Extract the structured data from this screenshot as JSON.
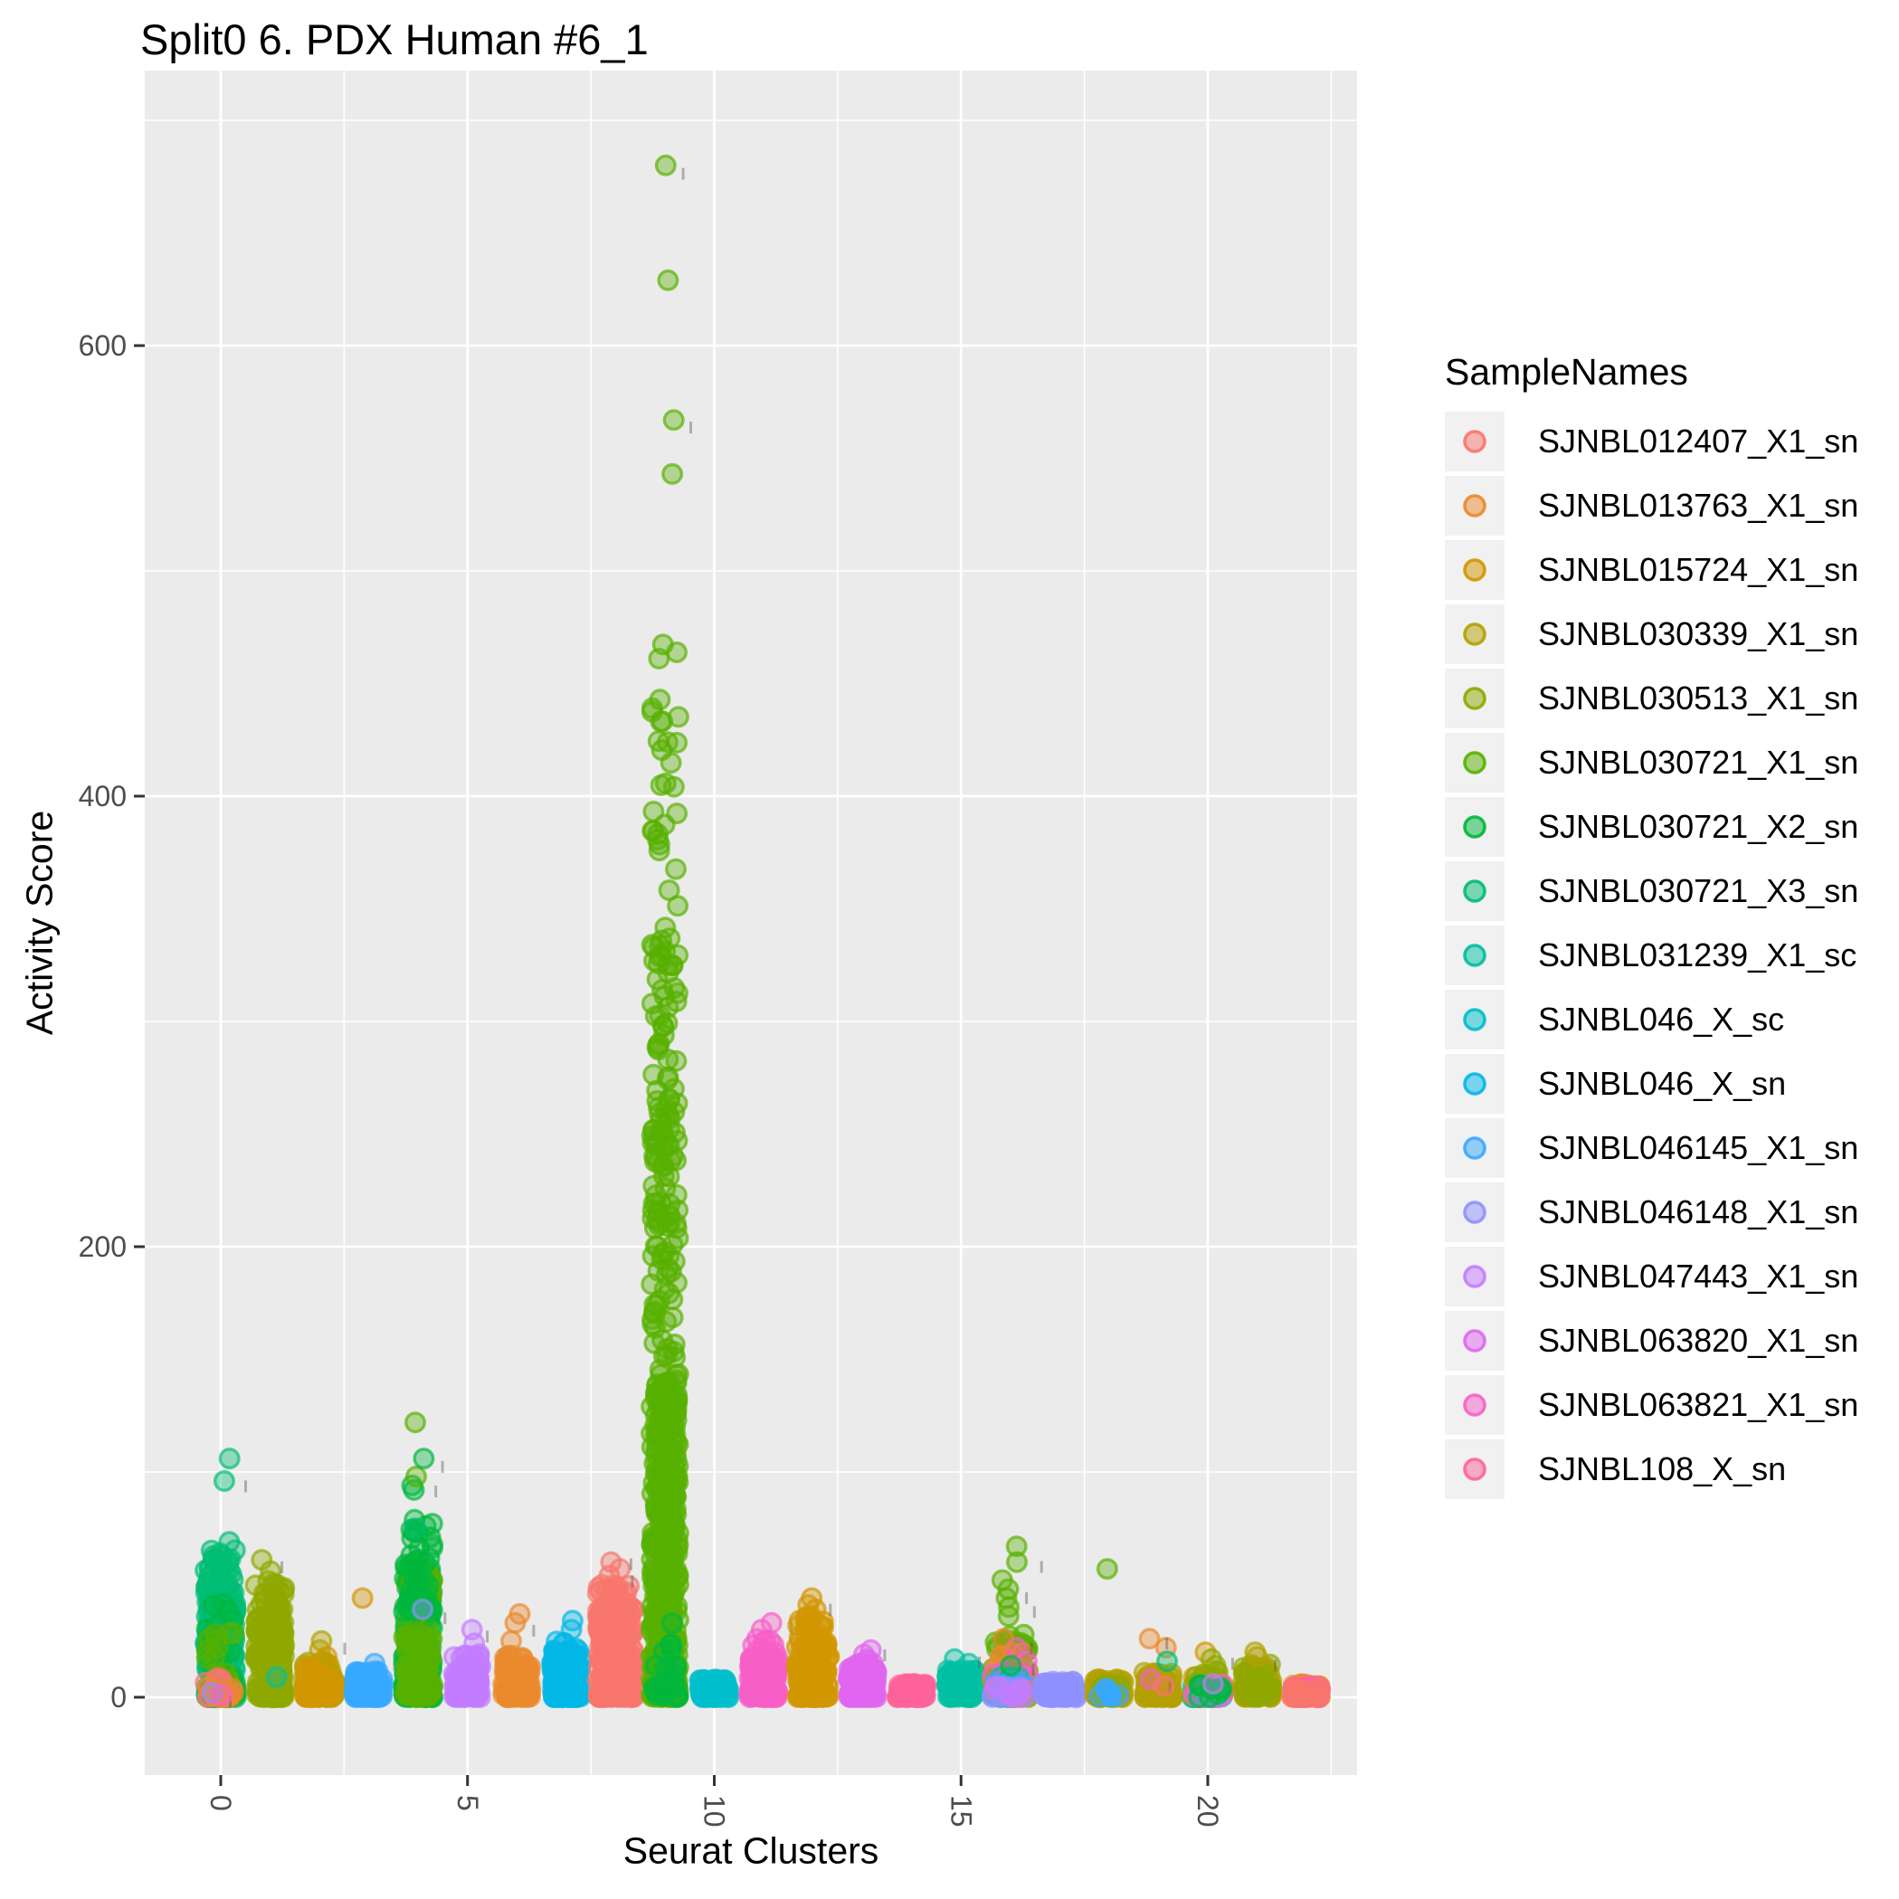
{
  "title": "Split0 6. PDX Human #6_1",
  "x_axis": {
    "label": "Seurat Clusters",
    "ticks": [
      "0",
      "5",
      "10",
      "15",
      "20"
    ],
    "tick_values": [
      0,
      5,
      10,
      15,
      20
    ],
    "minor_values": [
      2.5,
      7.5,
      12.5,
      17.5,
      22.5
    ],
    "range": [
      -1.5,
      23
    ]
  },
  "y_axis": {
    "label": "Activity Score",
    "ticks": [
      "0",
      "200",
      "400",
      "600"
    ],
    "tick_values": [
      0,
      200,
      400,
      600
    ],
    "minor_values": [
      100,
      300,
      500,
      700
    ],
    "range": [
      -34,
      722
    ]
  },
  "legend": {
    "title": "SampleNames",
    "entries": [
      {
        "label": "SJNBL012407_X1_sn",
        "color": "#F8766D"
      },
      {
        "label": "SJNBL013763_X1_sn",
        "color": "#E98A2C"
      },
      {
        "label": "SJNBL015724_X1_sn",
        "color": "#D29600"
      },
      {
        "label": "SJNBL030339_X1_sn",
        "color": "#B4A000"
      },
      {
        "label": "SJNBL030513_X1_sn",
        "color": "#8FA800"
      },
      {
        "label": "SJNBL030721_X1_sn",
        "color": "#57B100"
      },
      {
        "label": "SJNBL030721_X2_sn",
        "color": "#00B73C"
      },
      {
        "label": "SJNBL030721_X3_sn",
        "color": "#00BC74"
      },
      {
        "label": "SJNBL031239_X1_sc",
        "color": "#00BFA2"
      },
      {
        "label": "SJNBL046_X_sc",
        "color": "#00BECB"
      },
      {
        "label": "SJNBL046_X_sn",
        "color": "#00B7E8"
      },
      {
        "label": "SJNBL046145_X1_sn",
        "color": "#38A8FF"
      },
      {
        "label": "SJNBL046148_X1_sn",
        "color": "#8F90FF"
      },
      {
        "label": "SJNBL047443_X1_sn",
        "color": "#C37CFF"
      },
      {
        "label": "SJNBL063820_X1_sn",
        "color": "#E066F0"
      },
      {
        "label": "SJNBL063821_X1_sn",
        "color": "#F75FC9"
      },
      {
        "label": "SJNBL108_X_sn",
        "color": "#FF639A"
      }
    ]
  },
  "samples": {
    "SJNBL012407_X1_sn": "#F8766D",
    "SJNBL013763_X1_sn": "#E98A2C",
    "SJNBL015724_X1_sn": "#D29600",
    "SJNBL030339_X1_sn": "#B4A000",
    "SJNBL030513_X1_sn": "#8FA800",
    "SJNBL030721_X1_sn": "#57B100",
    "SJNBL030721_X2_sn": "#00B73C",
    "SJNBL030721_X3_sn": "#00BC74",
    "SJNBL031239_X1_sc": "#00BFA2",
    "SJNBL046_X_sc": "#00BECB",
    "SJNBL046_X_sn": "#00B7E8",
    "SJNBL046145_X1_sn": "#38A8FF",
    "SJNBL046148_X1_sn": "#8F90FF",
    "SJNBL047443_X1_sn": "#C37CFF",
    "SJNBL063820_X1_sn": "#E066F0",
    "SJNBL063821_X1_sn": "#F75FC9",
    "SJNBL108_X_sn": "#FF639A"
  },
  "colors": {
    "panel": "#EBEBEB",
    "grid": "#FFFFFF",
    "tick_text": "#4D4D4D",
    "tick_mark": "#333333",
    "legend_key": "#F1F1F1",
    "artifact": "#555555"
  },
  "chart_data": {
    "type": "scatter",
    "subtype": "jittered-strip",
    "title": "Split0 6. PDX Human #6_1",
    "xlabel": "Seurat Clusters",
    "ylabel": "Activity Score",
    "xlim": [
      -1.5,
      23
    ],
    "ylim": [
      -34,
      722
    ],
    "grid": true,
    "legend_position": "right",
    "note": "groups are [sample, n_points, v_min, v_max, decay_k]; outliers are [sample, activity_score]",
    "clusters": [
      {
        "cluster": 0,
        "jitter": 17,
        "groups": [
          [
            "SJNBL030721_X3_sn",
            230,
            0,
            50,
            2.0
          ],
          [
            "SJNBL030721_X3_sn",
            80,
            28,
            66,
            1.4
          ],
          [
            "SJNBL030721_X2_sn",
            40,
            0,
            45,
            2.0
          ],
          [
            "SJNBL030721_X1_sn",
            22,
            0,
            30,
            2.0
          ],
          [
            "SJNBL012407_X1_sn",
            16,
            0,
            9,
            2.0
          ],
          [
            "SJNBL013763_X1_sn",
            7,
            0,
            5,
            2.0
          ]
        ],
        "outliers": [
          [
            "SJNBL030721_X3_sn",
            69
          ],
          [
            "SJNBL030721_X3_sn",
            96
          ],
          [
            "SJNBL030721_X3_sn",
            106
          ],
          [
            "SJNBL046148_X1_sn",
            2
          ],
          [
            "SJNBL063821_X1_sn",
            1
          ]
        ]
      },
      {
        "cluster": 1,
        "jitter": 16,
        "groups": [
          [
            "SJNBL030513_X1_sn",
            210,
            0,
            36,
            2.0
          ],
          [
            "SJNBL030513_X1_sn",
            55,
            22,
            52,
            1.4
          ]
        ],
        "outliers": [
          [
            "SJNBL030513_X1_sn",
            56
          ],
          [
            "SJNBL030513_X1_sn",
            61
          ],
          [
            "SJNBL031239_X1_sc",
            9
          ]
        ]
      },
      {
        "cluster": 2,
        "jitter": 17,
        "groups": [
          [
            "SJNBL030339_X1_sn",
            115,
            0,
            16,
            1.8
          ],
          [
            "SJNBL015724_X1_sn",
            55,
            0,
            14,
            1.8
          ]
        ],
        "outliers": [
          [
            "SJNBL030339_X1_sn",
            21
          ],
          [
            "SJNBL030339_X1_sn",
            25
          ],
          [
            "SJNBL015724_X1_sn",
            18
          ]
        ]
      },
      {
        "cluster": 3,
        "jitter": 16,
        "groups": [
          [
            "SJNBL046145_X1_sn",
            150,
            0,
            12,
            1.8
          ]
        ],
        "outliers": [
          [
            "SJNBL015724_X1_sn",
            44
          ],
          [
            "SJNBL046145_X1_sn",
            15
          ]
        ]
      },
      {
        "cluster": 4,
        "jitter": 16,
        "groups": [
          [
            "SJNBL030721_X2_sn",
            230,
            0,
            60,
            1.9
          ],
          [
            "SJNBL030721_X1_sn",
            110,
            0,
            55,
            1.7
          ],
          [
            "SJNBL030721_X2_sn",
            50,
            38,
            80,
            1.3
          ]
        ],
        "outliers": [
          [
            "SJNBL030721_X2_sn",
            92
          ],
          [
            "SJNBL030721_X2_sn",
            94
          ],
          [
            "SJNBL030721_X1_sn",
            98
          ],
          [
            "SJNBL030721_X2_sn",
            106
          ],
          [
            "SJNBL030721_X1_sn",
            122
          ],
          [
            "SJNBL046148_X1_sn",
            39
          ],
          [
            "SJNBL030721_X3_sn",
            75
          ]
        ]
      },
      {
        "cluster": 5,
        "jitter": 15,
        "groups": [
          [
            "SJNBL047443_X1_sn",
            105,
            0,
            14,
            1.8
          ],
          [
            "SJNBL047443_X1_sn",
            22,
            8,
            20,
            1.3
          ]
        ],
        "outliers": [
          [
            "SJNBL047443_X1_sn",
            24
          ],
          [
            "SJNBL047443_X1_sn",
            30
          ]
        ]
      },
      {
        "cluster": 6,
        "jitter": 15,
        "groups": [
          [
            "SJNBL013763_X1_sn",
            110,
            0,
            14,
            1.8
          ],
          [
            "SJNBL013763_X1_sn",
            22,
            8,
            20,
            1.3
          ]
        ],
        "outliers": [
          [
            "SJNBL013763_X1_sn",
            25
          ],
          [
            "SJNBL013763_X1_sn",
            33
          ],
          [
            "SJNBL013763_X1_sn",
            37
          ]
        ]
      },
      {
        "cluster": 7,
        "jitter": 16,
        "groups": [
          [
            "SJNBL046_X_sn",
            145,
            0,
            20,
            1.8
          ],
          [
            "SJNBL046_X_sn",
            28,
            12,
            26,
            1.3
          ]
        ],
        "outliers": [
          [
            "SJNBL046_X_sn",
            30
          ],
          [
            "SJNBL046_X_sn",
            34
          ]
        ]
      },
      {
        "cluster": 8,
        "jitter": 20,
        "groups": [
          [
            "SJNBL012407_X1_sn",
            260,
            0,
            40,
            1.9
          ],
          [
            "SJNBL012407_X1_sn",
            65,
            24,
            50,
            1.3
          ]
        ],
        "outliers": [
          [
            "SJNBL012407_X1_sn",
            47
          ],
          [
            "SJNBL012407_X1_sn",
            54
          ],
          [
            "SJNBL012407_X1_sn",
            57
          ],
          [
            "SJNBL012407_X1_sn",
            60
          ]
        ]
      },
      {
        "cluster": 9,
        "jitter": 15,
        "groups": [
          [
            "SJNBL030721_X1_sn",
            330,
            0,
            140,
            1.7
          ],
          [
            "SJNBL030721_X1_sn",
            200,
            0,
            240,
            0.95
          ],
          [
            "SJNBL030721_X1_sn",
            70,
            240,
            340,
            1.2
          ],
          [
            "SJNBL030721_X1_sn",
            32,
            330,
            470,
            1.0
          ],
          [
            "SJNBL030721_X2_sn",
            24,
            0,
            35,
            1.8
          ]
        ],
        "outliers": [
          [
            "SJNBL030721_X1_sn",
            543
          ],
          [
            "SJNBL030721_X1_sn",
            567
          ],
          [
            "SJNBL030721_X1_sn",
            629
          ],
          [
            "SJNBL030721_X1_sn",
            680
          ]
        ]
      },
      {
        "cluster": 10,
        "jitter": 16,
        "groups": [
          [
            "SJNBL046_X_sc",
            120,
            0,
            8,
            1.5
          ]
        ],
        "outliers": []
      },
      {
        "cluster": 11,
        "jitter": 16,
        "groups": [
          [
            "SJNBL063821_X1_sn",
            165,
            0,
            20,
            1.8
          ],
          [
            "SJNBL063821_X1_sn",
            32,
            12,
            26,
            1.3
          ]
        ],
        "outliers": [
          [
            "SJNBL063821_X1_sn",
            30
          ],
          [
            "SJNBL063821_X1_sn",
            33
          ]
        ]
      },
      {
        "cluster": 12,
        "jitter": 18,
        "groups": [
          [
            "SJNBL015724_X1_sn",
            175,
            0,
            26,
            1.8
          ],
          [
            "SJNBL015724_X1_sn",
            42,
            18,
            36,
            1.2
          ]
        ],
        "outliers": [
          [
            "SJNBL015724_X1_sn",
            39
          ],
          [
            "SJNBL015724_X1_sn",
            41
          ],
          [
            "SJNBL015724_X1_sn",
            44
          ]
        ]
      },
      {
        "cluster": 13,
        "jitter": 16,
        "groups": [
          [
            "SJNBL063820_X1_sn",
            125,
            0,
            13,
            1.8
          ],
          [
            "SJNBL063820_X1_sn",
            20,
            8,
            17,
            1.2
          ]
        ],
        "outliers": [
          [
            "SJNBL063820_X1_sn",
            19
          ],
          [
            "SJNBL063820_X1_sn",
            21
          ]
        ]
      },
      {
        "cluster": 14,
        "jitter": 16,
        "groups": [
          [
            "SJNBL108_X_sn",
            120,
            0,
            6,
            1.5
          ]
        ],
        "outliers": []
      },
      {
        "cluster": 15,
        "jitter": 16,
        "groups": [
          [
            "SJNBL031239_X1_sc",
            130,
            0,
            12,
            1.5
          ]
        ],
        "outliers": [
          [
            "SJNBL031239_X1_sc",
            15
          ],
          [
            "SJNBL031239_X1_sc",
            17
          ]
        ]
      },
      {
        "cluster": 16,
        "jitter": 20,
        "groups": [
          [
            "SJNBL030721_X1_sn",
            55,
            0,
            30,
            1.5
          ],
          [
            "SJNBL013763_X1_sn",
            50,
            0,
            20,
            1.8
          ],
          [
            "SJNBL030513_X1_sn",
            28,
            0,
            16,
            1.8
          ],
          [
            "SJNBL063821_X1_sn",
            24,
            0,
            18,
            1.8
          ],
          [
            "SJNBL031239_X1_sc",
            28,
            0,
            9,
            1.8
          ],
          [
            "SJNBL046145_X1_sn",
            20,
            0,
            8,
            1.8
          ],
          [
            "SJNBL012407_X1_sn",
            12,
            0,
            6,
            1.8
          ],
          [
            "SJNBL046148_X1_sn",
            10,
            0,
            5,
            1.8
          ],
          [
            "SJNBL047443_X1_sn",
            8,
            0,
            5,
            1.8
          ]
        ],
        "outliers": [
          [
            "SJNBL030721_X1_sn",
            36
          ],
          [
            "SJNBL030721_X1_sn",
            40
          ],
          [
            "SJNBL030721_X1_sn",
            44
          ],
          [
            "SJNBL030721_X1_sn",
            48
          ],
          [
            "SJNBL030721_X1_sn",
            52
          ],
          [
            "SJNBL030721_X1_sn",
            60
          ],
          [
            "SJNBL030721_X1_sn",
            67
          ],
          [
            "SJNBL063821_X1_sn",
            22
          ],
          [
            "SJNBL013763_X1_sn",
            26
          ],
          [
            "SJNBL030721_X2_sn",
            14
          ]
        ]
      },
      {
        "cluster": 17,
        "jitter": 19,
        "groups": [
          [
            "SJNBL046148_X1_sn",
            115,
            0,
            7,
            1.5
          ]
        ],
        "outliers": []
      },
      {
        "cluster": 18,
        "jitter": 16,
        "groups": [
          [
            "SJNBL030339_X1_sn",
            80,
            0,
            8,
            1.6
          ],
          [
            "SJNBL030513_X1_sn",
            12,
            0,
            10,
            1.8
          ],
          [
            "SJNBL046145_X1_sn",
            8,
            0,
            4,
            1.8
          ]
        ],
        "outliers": [
          [
            "SJNBL030721_X1_sn",
            57
          ]
        ]
      },
      {
        "cluster": 19,
        "jitter": 16,
        "groups": [
          [
            "SJNBL030339_X1_sn",
            95,
            0,
            11,
            1.6
          ]
        ],
        "outliers": [
          [
            "SJNBL013763_X1_sn",
            22
          ],
          [
            "SJNBL013763_X1_sn",
            26
          ],
          [
            "SJNBL030721_X3_sn",
            16
          ],
          [
            "SJNBL063821_X1_sn",
            8
          ],
          [
            "SJNBL012407_X1_sn",
            5
          ]
        ]
      },
      {
        "cluster": 20,
        "jitter": 17,
        "groups": [
          [
            "SJNBL031239_X1_sc",
            42,
            0,
            8,
            1.8
          ],
          [
            "SJNBL015724_X1_sn",
            34,
            0,
            10,
            1.8
          ],
          [
            "SJNBL030513_X1_sn",
            24,
            0,
            12,
            1.4
          ],
          [
            "SJNBL063821_X1_sn",
            20,
            0,
            6,
            1.8
          ],
          [
            "SJNBL046148_X1_sn",
            14,
            0,
            5,
            1.8
          ],
          [
            "SJNBL030721_X2_sn",
            10,
            0,
            6,
            1.8
          ]
        ],
        "outliers": [
          [
            "SJNBL015724_X1_sn",
            20
          ],
          [
            "SJNBL030513_X1_sn",
            17
          ],
          [
            "SJNBL030513_X1_sn",
            14
          ],
          [
            "SJNBL047443_X1_sn",
            6
          ]
        ]
      },
      {
        "cluster": 21,
        "jitter": 16,
        "groups": [
          [
            "SJNBL030339_X1_sn",
            115,
            0,
            14,
            1.6
          ],
          [
            "SJNBL030513_X1_sn",
            24,
            0,
            16,
            1.4
          ]
        ],
        "outliers": [
          [
            "SJNBL030339_X1_sn",
            20
          ],
          [
            "SJNBL030339_X1_sn",
            18
          ]
        ]
      },
      {
        "cluster": 22,
        "jitter": 16,
        "groups": [
          [
            "SJNBL013763_X1_sn",
            65,
            0,
            6,
            1.6
          ],
          [
            "SJNBL108_X_sn",
            48,
            0,
            5,
            1.6
          ],
          [
            "SJNBL012407_X1_sn",
            24,
            0,
            4,
            1.8
          ]
        ],
        "outliers": []
      }
    ]
  }
}
